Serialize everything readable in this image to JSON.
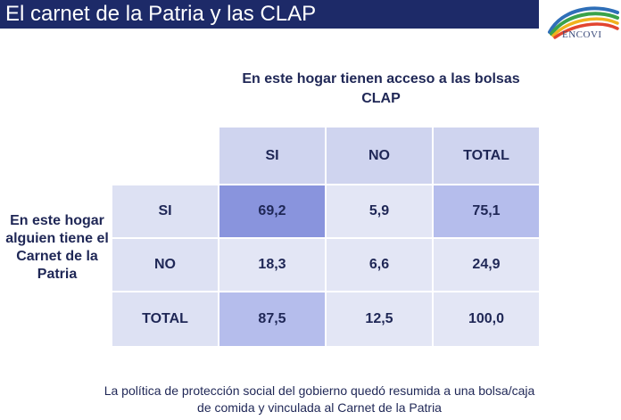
{
  "title": "El carnet de la Patria y las CLAP",
  "logo": {
    "text": "ENCOVI"
  },
  "table": {
    "column_heading": "En este hogar tienen acceso a las bolsas CLAP",
    "row_heading": "En este hogar alguien tiene el Carnet de la Patria",
    "columns": [
      "SI",
      "NO",
      "TOTAL"
    ],
    "rows": [
      {
        "label": "SI",
        "values": [
          "69,2",
          "5,9",
          "75,1"
        ]
      },
      {
        "label": "NO",
        "values": [
          "18,3",
          "6,6",
          "24,9"
        ]
      },
      {
        "label": "TOTAL",
        "values": [
          "87,5",
          "12,5",
          "100,0"
        ]
      }
    ]
  },
  "note": "La política de protección social del gobierno quedó resumida a una bolsa/caja de comida y vinculada al Carnet de la Patria",
  "colors": {
    "title_bar": "#1d2a68",
    "text": "#1f2756",
    "cell_default": "#e3e6f5",
    "cell_header": "#cfd4ef",
    "cell_strong": "#8994dd",
    "cell_medium": "#b5bdec"
  }
}
